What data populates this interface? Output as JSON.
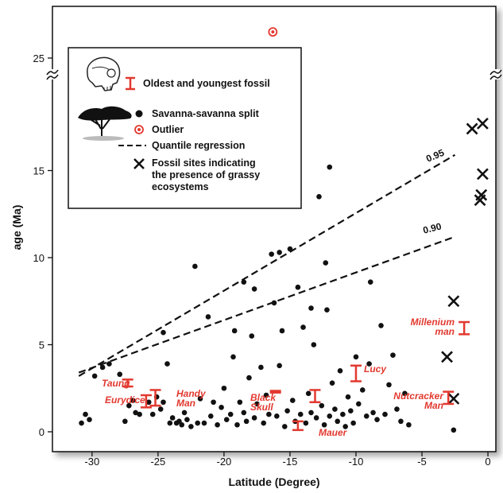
{
  "chart_data": {
    "type": "scatter",
    "title": "",
    "xlabel": "Latitude (Degree)",
    "ylabel": "age (Ma)",
    "xlim": [
      -33,
      0.6
    ],
    "ylim": [
      -0.5,
      27.5
    ],
    "axis_break": {
      "lower": 18.8,
      "upper": 24.2
    },
    "x_ticks": [
      -30,
      -25,
      -20,
      -15,
      -10,
      -5,
      0
    ],
    "y_ticks": [
      0,
      5,
      10,
      15,
      25
    ],
    "colors": {
      "points": "#111111",
      "fossil": "#e2392f",
      "outlier": "#e2392f"
    },
    "legend": {
      "position": "top-left",
      "items": [
        {
          "marker": "error-bar",
          "label": "Oldest and youngest fossil"
        },
        {
          "marker": "dot",
          "label": "Savanna-savanna split"
        },
        {
          "marker": "ring",
          "label": "Outlier"
        },
        {
          "marker": "dashed-line",
          "label": "Quantile regression"
        },
        {
          "marker": "cross",
          "label": "Fossil sites indicating the presence of grassy ecosystems"
        }
      ]
    },
    "series": [
      {
        "name": "Savanna-savanna split",
        "points": [
          [
            -30.8,
            0.5
          ],
          [
            -30.5,
            1.0
          ],
          [
            -30.2,
            0.7
          ],
          [
            -29.8,
            3.2
          ],
          [
            -29.2,
            3.7
          ],
          [
            -28.7,
            3.9
          ],
          [
            -27.9,
            3.3
          ],
          [
            -27.5,
            0.6
          ],
          [
            -27.2,
            1.5
          ],
          [
            -26.9,
            1.8
          ],
          [
            -26.7,
            1.1
          ],
          [
            -26.4,
            1.0
          ],
          [
            -25.7,
            1.7
          ],
          [
            -25.4,
            1.0
          ],
          [
            -25.1,
            2.0
          ],
          [
            -24.8,
            1.3
          ],
          [
            -24.6,
            1.7
          ],
          [
            -24.6,
            5.7
          ],
          [
            -24.3,
            3.9
          ],
          [
            -24.1,
            0.5
          ],
          [
            -23.9,
            0.8
          ],
          [
            -23.6,
            0.5
          ],
          [
            -23.4,
            0.6
          ],
          [
            -23.2,
            0.4
          ],
          [
            -23.0,
            1.1
          ],
          [
            -22.8,
            0.7
          ],
          [
            -22.5,
            0.3
          ],
          [
            -22.2,
            9.5
          ],
          [
            -22.0,
            0.5
          ],
          [
            -21.8,
            1.9
          ],
          [
            -21.5,
            0.5
          ],
          [
            -21.2,
            6.6
          ],
          [
            -21.0,
            0.9
          ],
          [
            -20.8,
            1.7
          ],
          [
            -20.5,
            0.4
          ],
          [
            -20.2,
            1.4
          ],
          [
            -20.0,
            2.5
          ],
          [
            -19.8,
            0.7
          ],
          [
            -19.5,
            1.0
          ],
          [
            -19.3,
            4.3
          ],
          [
            -19.0,
            0.4
          ],
          [
            -18.8,
            1.7
          ],
          [
            -18.5,
            1.1
          ],
          [
            -18.3,
            0.6
          ],
          [
            -18.1,
            3.1
          ],
          [
            -17.9,
            5.5
          ],
          [
            -17.7,
            0.8
          ],
          [
            -17.5,
            1.6
          ],
          [
            -17.2,
            3.7
          ],
          [
            -17.0,
            0.5
          ],
          [
            -16.8,
            2.1
          ],
          [
            -16.6,
            1.0
          ],
          [
            -16.4,
            10.2
          ],
          [
            -16.2,
            7.4
          ],
          [
            -16.0,
            0.9
          ],
          [
            -15.8,
            3.8
          ],
          [
            -15.6,
            5.8
          ],
          [
            -15.4,
            0.3
          ],
          [
            -15.2,
            1.2
          ],
          [
            -15.0,
            10.5
          ],
          [
            -14.8,
            1.8
          ],
          [
            -14.6,
            0.6
          ],
          [
            -14.4,
            8.3
          ],
          [
            -14.2,
            1.0
          ],
          [
            -14.0,
            6.0
          ],
          [
            -13.8,
            0.5
          ],
          [
            -13.6,
            2.2
          ],
          [
            -13.4,
            1.1
          ],
          [
            -13.2,
            5.0
          ],
          [
            -13.0,
            0.8
          ],
          [
            -12.8,
            13.5
          ],
          [
            -12.6,
            1.5
          ],
          [
            -12.4,
            0.4
          ],
          [
            -12.2,
            7.0
          ],
          [
            -12.0,
            0.9
          ],
          [
            -11.8,
            2.8
          ],
          [
            -11.6,
            1.3
          ],
          [
            -11.4,
            0.6
          ],
          [
            -11.2,
            3.5
          ],
          [
            -11.0,
            1.0
          ],
          [
            -10.8,
            0.3
          ],
          [
            -10.6,
            2.0
          ],
          [
            -10.4,
            1.2
          ],
          [
            -10.2,
            0.5
          ],
          [
            -10.0,
            4.3
          ],
          [
            -9.8,
            1.6
          ],
          [
            -9.5,
            2.4
          ],
          [
            -9.2,
            0.9
          ],
          [
            -9.0,
            3.9
          ],
          [
            -8.7,
            1.1
          ],
          [
            -8.4,
            0.7
          ],
          [
            -8.1,
            6.1
          ],
          [
            -7.8,
            1.0
          ],
          [
            -7.5,
            2.7
          ],
          [
            -7.2,
            4.4
          ],
          [
            -6.9,
            1.3
          ],
          [
            -6.6,
            0.6
          ],
          [
            -6.3,
            2.2
          ],
          [
            -6.0,
            0.4
          ],
          [
            -2.6,
            0.1
          ],
          [
            -12.0,
            15.2
          ],
          [
            -15.8,
            10.3
          ],
          [
            -12.3,
            9.7
          ],
          [
            -8.9,
            8.6
          ],
          [
            -18.5,
            8.6
          ],
          [
            -17.7,
            8.2
          ],
          [
            -13.4,
            7.1
          ],
          [
            -19.2,
            5.8
          ]
        ]
      },
      {
        "name": "Outlier",
        "points": [
          [
            -16.3,
            26.5
          ]
        ]
      },
      {
        "name": "Fossil sites indicating the presence of grassy ecosystems",
        "points": [
          [
            -0.4,
            17.7
          ],
          [
            -1.2,
            17.4
          ],
          [
            -0.4,
            14.8
          ],
          [
            -0.5,
            13.6
          ],
          [
            -0.6,
            13.3
          ],
          [
            -2.6,
            7.5
          ],
          [
            -3.1,
            4.3
          ],
          [
            -2.6,
            1.9
          ]
        ]
      }
    ],
    "quantile_regression": [
      {
        "name": "0.95",
        "from": [
          -31,
          3.2
        ],
        "to": [
          -2.5,
          15.9
        ]
      },
      {
        "name": "0.90",
        "from": [
          -31,
          3.4
        ],
        "to": [
          -2.5,
          11.2
        ]
      }
    ],
    "fossils": [
      {
        "name": "Taung",
        "x": -27.3,
        "low": 2.6,
        "high": 3.0
      },
      {
        "name": "Eurydice",
        "x": -25.9,
        "low": 1.4,
        "high": 2.1
      },
      {
        "name": "Handy Man",
        "x": -25.2,
        "low": 1.5,
        "high": 2.4
      },
      {
        "name": "Black Skull",
        "x": -16.1,
        "low": 2.25,
        "high": 2.35
      },
      {
        "name": "Mauer",
        "x": -14.4,
        "low": 0.1,
        "high": 0.6
      },
      {
        "name": "Lucy",
        "x": -13.1,
        "low": 1.7,
        "high": 2.4
      },
      {
        "name": "Lucy",
        "x": -10.0,
        "low": 2.9,
        "high": 3.8
      },
      {
        "name": "Millenium man",
        "x": -1.8,
        "low": 5.6,
        "high": 6.3
      },
      {
        "name": "Nutcracker Man",
        "x": -3.0,
        "low": 1.6,
        "high": 2.3
      }
    ],
    "fossil_labels": [
      {
        "text": "Taung",
        "lines": [
          "Taung"
        ]
      },
      {
        "text": "Eurydice",
        "lines": [
          "Eurydice"
        ]
      },
      {
        "text": "Handy Man",
        "lines": [
          "Handy",
          "Man"
        ]
      },
      {
        "text": "Black Skull",
        "lines": [
          "Black",
          "Skull"
        ]
      },
      {
        "text": "Mauer",
        "lines": [
          "Mauer"
        ]
      },
      {
        "text": "Lucy",
        "lines": [
          "Lucy"
        ]
      },
      {
        "text": "Millenium man",
        "lines": [
          "Millenium",
          "man"
        ]
      },
      {
        "text": "Nutcracker Man",
        "lines": [
          "Nutcracker",
          "Man"
        ]
      }
    ],
    "quantile_labels": [
      "0.95",
      "0.90"
    ]
  }
}
